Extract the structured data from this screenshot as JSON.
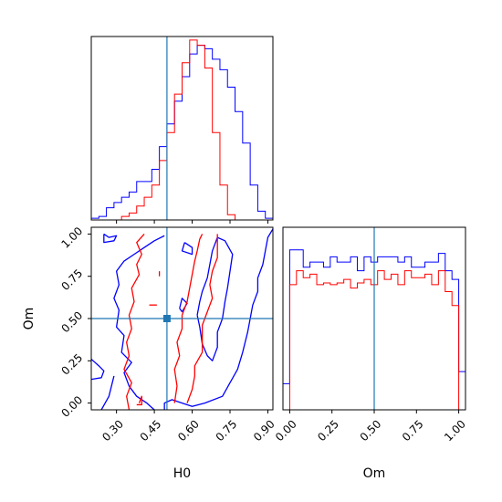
{
  "chart_data": {
    "type": "corner",
    "parameters": [
      "H0",
      "Om"
    ],
    "truth": {
      "H0": 0.5,
      "Om": 0.5
    },
    "colors": {
      "series_a": "#0000ff",
      "series_b": "#ff0000",
      "truth": "#1f77b4",
      "frame": "#000000"
    },
    "panels": [
      {
        "id": "hist-H0",
        "type": "histogram",
        "x_param": "H0",
        "xlim": [
          0.2,
          0.92
        ],
        "x_ticks": [
          0.3,
          0.45,
          0.6,
          0.75,
          0.9
        ],
        "x_tick_labels_visible": false,
        "y_tick_labels_visible": false,
        "truth_x": 0.5,
        "bin_edges": [
          0.2,
          0.23,
          0.26,
          0.29,
          0.32,
          0.35,
          0.38,
          0.41,
          0.44,
          0.47,
          0.5,
          0.53,
          0.56,
          0.59,
          0.62,
          0.65,
          0.68,
          0.71,
          0.74,
          0.77,
          0.8,
          0.83,
          0.86,
          0.89,
          0.92
        ],
        "ylim": [
          0,
          1.05
        ],
        "series": [
          {
            "color_key": "series_a",
            "counts": [
              0.01,
              0.02,
              0.07,
              0.1,
              0.13,
              0.16,
              0.22,
              0.22,
              0.29,
              0.42,
              0.55,
              0.68,
              0.82,
              0.95,
              1.0,
              0.98,
              0.92,
              0.86,
              0.76,
              0.62,
              0.44,
              0.2,
              0.05,
              0.01
            ]
          },
          {
            "color_key": "series_b",
            "counts": [
              0.0,
              0.0,
              0.0,
              0.0,
              0.02,
              0.04,
              0.08,
              0.13,
              0.2,
              0.34,
              0.5,
              0.72,
              0.9,
              1.03,
              1.0,
              0.87,
              0.5,
              0.2,
              0.03,
              0.0,
              0.0,
              0.0,
              0.0,
              0.0
            ]
          }
        ]
      },
      {
        "id": "contour-H0-Om",
        "type": "contour",
        "x_param": "H0",
        "y_param": "Om",
        "xlim": [
          0.2,
          0.92
        ],
        "ylim": [
          -0.04,
          1.04
        ],
        "x_ticks": [
          0.3,
          0.45,
          0.6,
          0.75,
          0.9
        ],
        "x_tick_labels": [
          "0.30",
          "0.45",
          "0.60",
          "0.75",
          "0.90"
        ],
        "y_ticks": [
          0.0,
          0.25,
          0.5,
          0.75,
          1.0
        ],
        "y_tick_labels": [
          "0.00",
          "0.25",
          "0.50",
          "0.75",
          "1.00"
        ],
        "truth_point": [
          0.5,
          0.5
        ],
        "series": [
          {
            "color_key": "series_a",
            "paths": [
              [
                [
                  0.45,
                  -0.04
                ],
                [
                  0.42,
                  0.0
                ],
                [
                  0.38,
                  0.04
                ],
                [
                  0.35,
                  0.1
                ],
                [
                  0.33,
                  0.18
                ],
                [
                  0.36,
                  0.24
                ],
                [
                  0.32,
                  0.3
                ],
                [
                  0.33,
                  0.4
                ],
                [
                  0.3,
                  0.45
                ],
                [
                  0.31,
                  0.55
                ],
                [
                  0.29,
                  0.62
                ],
                [
                  0.31,
                  0.7
                ],
                [
                  0.3,
                  0.78
                ],
                [
                  0.33,
                  0.84
                ],
                [
                  0.37,
                  0.88
                ],
                [
                  0.41,
                  0.92
                ],
                [
                  0.45,
                  0.96
                ],
                [
                  0.49,
                  0.99
                ]
              ],
              [
                [
                  0.29,
                  0.16
                ],
                [
                  0.27,
                  0.04
                ],
                [
                  0.24,
                  -0.04
                ]
              ],
              [
                [
                  0.2,
                  0.26
                ],
                [
                  0.23,
                  0.22
                ],
                [
                  0.25,
                  0.19
                ],
                [
                  0.24,
                  0.15
                ],
                [
                  0.2,
                  0.14
                ]
              ],
              [
                [
                  0.25,
                  1.0
                ],
                [
                  0.27,
                  0.98
                ],
                [
                  0.3,
                  0.99
                ],
                [
                  0.29,
                  0.96
                ],
                [
                  0.25,
                  0.95
                ],
                [
                  0.25,
                  1.0
                ]
              ],
              [
                [
                  0.49,
                  -0.04
                ],
                [
                  0.49,
                  0.0
                ],
                [
                  0.52,
                  0.02
                ],
                [
                  0.56,
                  0.0
                ],
                [
                  0.6,
                  -0.02
                ],
                [
                  0.65,
                  0.0
                ],
                [
                  0.72,
                  0.04
                ],
                [
                  0.75,
                  0.12
                ],
                [
                  0.78,
                  0.2
                ],
                [
                  0.8,
                  0.3
                ],
                [
                  0.82,
                  0.42
                ],
                [
                  0.83,
                  0.5
                ],
                [
                  0.84,
                  0.58
                ],
                [
                  0.86,
                  0.66
                ],
                [
                  0.86,
                  0.74
                ],
                [
                  0.88,
                  0.82
                ],
                [
                  0.89,
                  0.9
                ],
                [
                  0.9,
                  0.98
                ],
                [
                  0.92,
                  1.03
                ]
              ],
              [
                [
                  0.62,
                  0.52
                ],
                [
                  0.63,
                  0.45
                ],
                [
                  0.64,
                  0.35
                ],
                [
                  0.66,
                  0.28
                ],
                [
                  0.68,
                  0.25
                ],
                [
                  0.7,
                  0.33
                ],
                [
                  0.7,
                  0.42
                ],
                [
                  0.72,
                  0.5
                ],
                [
                  0.73,
                  0.6
                ],
                [
                  0.74,
                  0.68
                ],
                [
                  0.75,
                  0.78
                ],
                [
                  0.76,
                  0.88
                ],
                [
                  0.73,
                  0.96
                ],
                [
                  0.7,
                  0.98
                ],
                [
                  0.68,
                  0.9
                ],
                [
                  0.67,
                  0.82
                ],
                [
                  0.66,
                  0.74
                ],
                [
                  0.64,
                  0.66
                ],
                [
                  0.63,
                  0.6
                ],
                [
                  0.62,
                  0.52
                ]
              ],
              [
                [
                  0.57,
                  0.95
                ],
                [
                  0.6,
                  0.92
                ],
                [
                  0.6,
                  0.88
                ],
                [
                  0.56,
                  0.9
                ],
                [
                  0.57,
                  0.95
                ]
              ],
              [
                [
                  0.55,
                  0.56
                ],
                [
                  0.56,
                  0.62
                ],
                [
                  0.58,
                  0.59
                ],
                [
                  0.56,
                  0.54
                ],
                [
                  0.55,
                  0.56
                ]
              ]
            ]
          },
          {
            "color_key": "series_b",
            "paths": [
              [
                [
                  0.35,
                  -0.04
                ],
                [
                  0.34,
                  0.04
                ],
                [
                  0.36,
                  0.12
                ],
                [
                  0.33,
                  0.2
                ],
                [
                  0.35,
                  0.28
                ],
                [
                  0.34,
                  0.36
                ],
                [
                  0.36,
                  0.44
                ],
                [
                  0.35,
                  0.52
                ],
                [
                  0.37,
                  0.6
                ],
                [
                  0.36,
                  0.68
                ],
                [
                  0.39,
                  0.76
                ],
                [
                  0.38,
                  0.82
                ],
                [
                  0.4,
                  0.88
                ],
                [
                  0.38,
                  0.95
                ],
                [
                  0.41,
                  1.0
                ]
              ],
              [
                [
                  0.39,
                  0.0
                ],
                [
                  0.4,
                  0.04
                ],
                [
                  0.4,
                  -0.01
                ],
                [
                  0.38,
                  -0.01
                ]
              ],
              [
                [
                  0.53,
                  0.0
                ],
                [
                  0.54,
                  0.1
                ],
                [
                  0.53,
                  0.2
                ],
                [
                  0.55,
                  0.28
                ],
                [
                  0.54,
                  0.36
                ],
                [
                  0.56,
                  0.44
                ],
                [
                  0.56,
                  0.52
                ],
                [
                  0.58,
                  0.6
                ],
                [
                  0.59,
                  0.68
                ],
                [
                  0.6,
                  0.76
                ],
                [
                  0.61,
                  0.84
                ],
                [
                  0.62,
                  0.9
                ],
                [
                  0.63,
                  0.97
                ],
                [
                  0.64,
                  1.0
                ]
              ],
              [
                [
                  0.58,
                  0.0
                ],
                [
                  0.6,
                  0.08
                ],
                [
                  0.61,
                  0.16
                ],
                [
                  0.61,
                  0.22
                ],
                [
                  0.64,
                  0.3
                ],
                [
                  0.64,
                  0.38
                ],
                [
                  0.64,
                  0.46
                ],
                [
                  0.66,
                  0.54
                ],
                [
                  0.68,
                  0.62
                ],
                [
                  0.67,
                  0.7
                ],
                [
                  0.68,
                  0.78
                ],
                [
                  0.7,
                  0.86
                ],
                [
                  0.7,
                  0.94
                ],
                [
                  0.7,
                  1.0
                ]
              ],
              [
                [
                  0.47,
                  0.75
                ],
                [
                  0.47,
                  0.78
                ]
              ],
              [
                [
                  0.43,
                  0.58
                ],
                [
                  0.46,
                  0.58
                ]
              ]
            ]
          }
        ]
      },
      {
        "id": "hist-Om",
        "type": "histogram",
        "x_param": "Om",
        "xlim": [
          -0.04,
          1.04
        ],
        "x_ticks": [
          0.0,
          0.25,
          0.5,
          0.75,
          1.0
        ],
        "x_tick_labels": [
          "0.00",
          "0.25",
          "0.50",
          "0.75",
          "1.00"
        ],
        "y_tick_labels_visible": false,
        "truth_x": 0.5,
        "bin_edges": [
          -0.04,
          0.0,
          0.04,
          0.08,
          0.12,
          0.16,
          0.2,
          0.24,
          0.28,
          0.32,
          0.36,
          0.4,
          0.44,
          0.48,
          0.52,
          0.56,
          0.6,
          0.64,
          0.68,
          0.72,
          0.76,
          0.8,
          0.84,
          0.88,
          0.92,
          0.96,
          1.0,
          1.04
        ],
        "ylim": [
          0,
          1.05
        ],
        "series": [
          {
            "color_key": "series_a",
            "counts": [
              0.15,
              0.92,
              0.92,
              0.82,
              0.85,
              0.85,
              0.82,
              0.88,
              0.85,
              0.85,
              0.88,
              0.8,
              0.88,
              0.85,
              0.88,
              0.88,
              0.88,
              0.85,
              0.88,
              0.82,
              0.82,
              0.85,
              0.85,
              0.9,
              0.8,
              0.75,
              0.22
            ]
          },
          {
            "color_key": "series_b",
            "counts": [
              0.0,
              0.72,
              0.8,
              0.76,
              0.78,
              0.72,
              0.73,
              0.72,
              0.73,
              0.75,
              0.7,
              0.73,
              0.75,
              0.72,
              0.8,
              0.75,
              0.78,
              0.72,
              0.8,
              0.76,
              0.76,
              0.78,
              0.72,
              0.8,
              0.68,
              0.6,
              0.0
            ]
          }
        ]
      }
    ],
    "xlabels": {
      "H0": "H0",
      "Om": "Om"
    },
    "ylabels": {
      "Om": "Om"
    }
  }
}
